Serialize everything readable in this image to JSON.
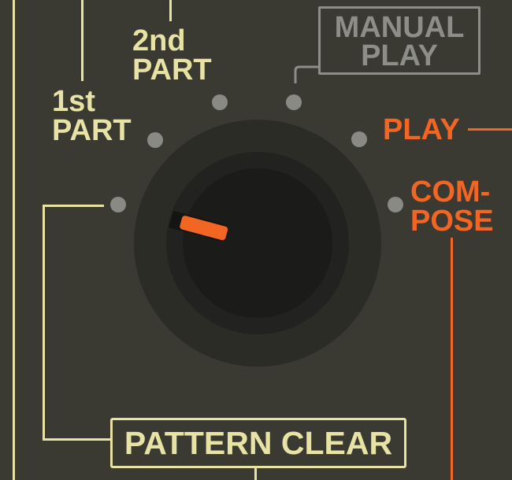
{
  "selector": {
    "positions": [
      {
        "lines": [
          "1st",
          "PART"
        ]
      },
      {
        "lines": [
          "2nd",
          "PART"
        ]
      },
      {
        "lines": [
          "MANUAL",
          "PLAY"
        ]
      },
      {
        "lines": [
          "PLAY"
        ]
      },
      {
        "lines": [
          "COM-",
          "POSE"
        ]
      }
    ],
    "pattern_clear": "PATTERN CLEAR"
  },
  "colors": {
    "panel": "#3a3a32",
    "cream": "#e8e2a4",
    "orange": "#f26522",
    "grey": "#8e8e88",
    "dot": "#8a8a84"
  }
}
